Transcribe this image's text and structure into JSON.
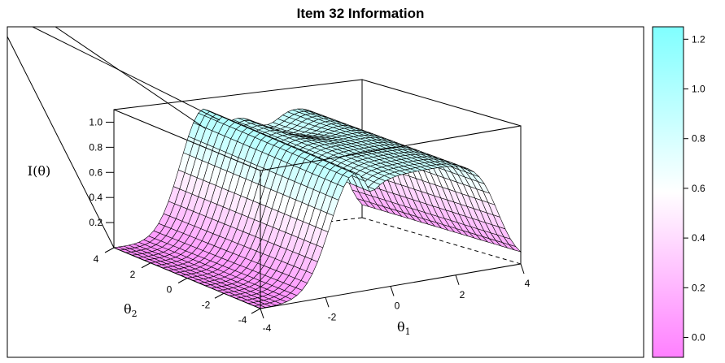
{
  "chart_data": {
    "type": "surface",
    "title": "Item 32 Information",
    "zlabel": "I(θ)",
    "x_axis": {
      "label_main": "θ",
      "label_sub": "1",
      "ticks": [
        "-4",
        "-2",
        "0",
        "2",
        "4"
      ]
    },
    "y_axis": {
      "label_main": "θ",
      "label_sub": "2",
      "ticks": [
        "-4",
        "-2",
        "0",
        "2",
        "4"
      ]
    },
    "z_axis": {
      "ticks": [
        "0.2",
        "0.4",
        "0.6",
        "0.8",
        "1.0"
      ],
      "range": [
        0,
        1.1
      ]
    },
    "colorbar": {
      "ticks": [
        "0.0",
        "0.2",
        "0.4",
        "0.6",
        "0.8",
        "1.0",
        "1.2"
      ],
      "low_color": "#ff80ff",
      "mid_color": "#ffffff",
      "high_color": "#80ffff",
      "range": [
        -0.08,
        1.25
      ]
    },
    "surface_shape": "ridge of I≈1.0 centred near θ1≈-1, θ2≈0, dropping to 0 for θ1<-3; near-flat plateau ≈0.95 for θ1 in -1..3, falling to 0 at θ1=4; a dip near θ1≈1 along the θ2=4 side"
  }
}
